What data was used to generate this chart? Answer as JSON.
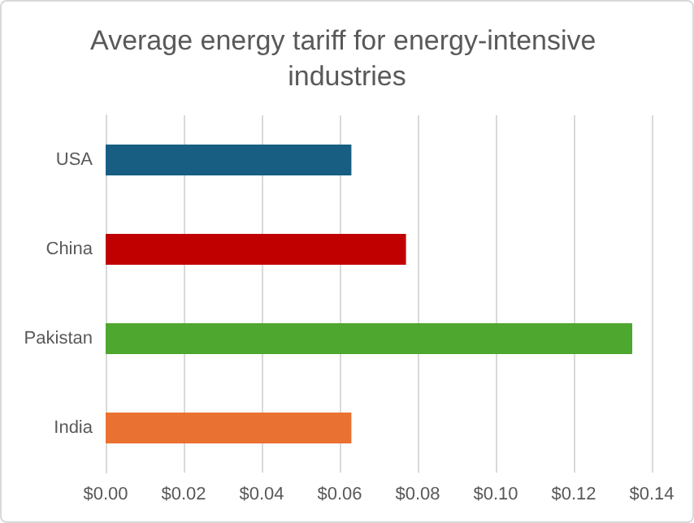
{
  "chart_data": {
    "type": "bar",
    "orientation": "horizontal",
    "title": "Average energy tariff for energy-intensive industries",
    "categories": [
      "USA",
      "China",
      "Pakistan",
      "India"
    ],
    "values": [
      0.063,
      0.077,
      0.135,
      0.063
    ],
    "colors": [
      "#175e82",
      "#c00000",
      "#4ea72e",
      "#e97132"
    ],
    "xlim": [
      0,
      0.14
    ],
    "xticks": [
      {
        "value": 0,
        "label": "$0.00"
      },
      {
        "value": 0.02,
        "label": "$0.02"
      },
      {
        "value": 0.04,
        "label": "$0.04"
      },
      {
        "value": 0.06,
        "label": "$0.06"
      },
      {
        "value": 0.08,
        "label": "$0.08"
      },
      {
        "value": 0.1,
        "label": "$0.10"
      },
      {
        "value": 0.12,
        "label": "$0.12"
      },
      {
        "value": 0.14,
        "label": "$0.14"
      }
    ],
    "grid": "x"
  }
}
